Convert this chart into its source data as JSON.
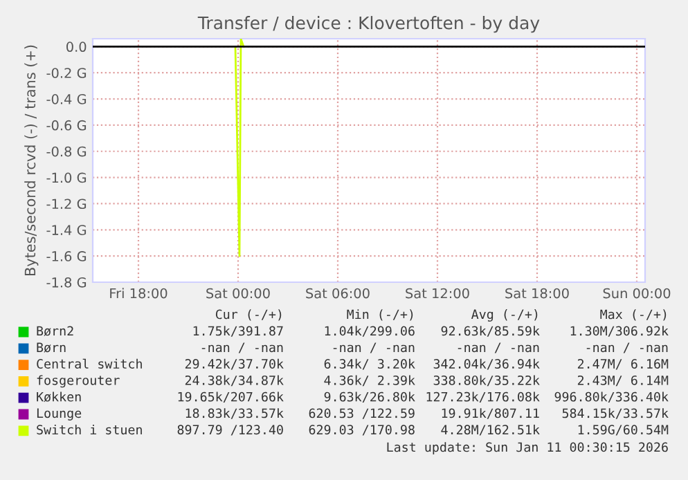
{
  "chart_data": {
    "type": "line",
    "title": "Transfer / device : Klovertoften - by day",
    "ylabel": "Bytes/second rcvd (-) / trans (+)",
    "xlim": [
      "2026-01-09T15:15",
      "2026-01-11T00:30"
    ],
    "xticks": [
      {
        "value": "2026-01-09T18:00",
        "label": "Fri 18:00"
      },
      {
        "value": "2026-01-10T00:00",
        "label": "Sat 00:00"
      },
      {
        "value": "2026-01-10T06:00",
        "label": "Sat 06:00"
      },
      {
        "value": "2026-01-10T12:00",
        "label": "Sat 12:00"
      },
      {
        "value": "2026-01-10T18:00",
        "label": "Sat 18:00"
      },
      {
        "value": "2026-01-11T00:00",
        "label": "Sun 00:00"
      }
    ],
    "ylim": [
      -1.8,
      0.06
    ],
    "yticks": [
      {
        "value": 0.0,
        "label": "0.0"
      },
      {
        "value": -0.2,
        "label": "-0.2 G"
      },
      {
        "value": -0.4,
        "label": "-0.4 G"
      },
      {
        "value": -0.6,
        "label": "-0.6 G"
      },
      {
        "value": -0.8,
        "label": "-0.8 G"
      },
      {
        "value": -1.0,
        "label": "-1.0 G"
      },
      {
        "value": -1.2,
        "label": "-1.2 G"
      },
      {
        "value": -1.4,
        "label": "-1.4 G"
      },
      {
        "value": -1.6,
        "label": "-1.6 G"
      },
      {
        "value": -1.8,
        "label": "-1.8 G"
      }
    ],
    "grid": true,
    "legend": "bottom",
    "line_style": "solid",
    "marker": "none",
    "ref_lines": [
      {
        "axis": "y",
        "value": 0,
        "color": "#000000"
      }
    ],
    "series": [
      {
        "name": "Børn2",
        "color": "#00cc00"
      },
      {
        "name": "Børn",
        "color": "#0066b3"
      },
      {
        "name": "Central switch",
        "color": "#ff8000"
      },
      {
        "name": "fosgerouter",
        "color": "#ffcc00"
      },
      {
        "name": "Køkken",
        "color": "#330099"
      },
      {
        "name": "Lounge",
        "color": "#990099"
      },
      {
        "name": "Switch i stuen",
        "color": "#ccff00",
        "x": [
          "2026-01-09T23:50",
          "2026-01-10T00:05",
          "2026-01-10T00:10",
          "2026-01-10T00:20"
        ],
        "values": [
          0,
          -1.6,
          0.06,
          0
        ]
      }
    ],
    "annotations": [
      "Cur (-/+)",
      "Min (-/+)",
      "Avg (-/+)",
      "Max (-/+)",
      "1.75k/391.87",
      "1.04k/299.06",
      "92.63k/85.59k",
      "1.30M/306.92k",
      "-nan / -nan",
      "-nan / -nan",
      "-nan / -nan",
      "-nan / -nan",
      "29.42k/37.70k",
      "6.34k/ 3.20k",
      "342.04k/36.94k",
      "2.47M/ 6.16M",
      "24.38k/34.87k",
      "4.36k/ 2.39k",
      "338.80k/35.22k",
      "2.43M/ 6.14M",
      "19.65k/207.66k",
      "9.63k/26.80k",
      "127.23k/176.08k",
      "996.80k/336.40k",
      "18.83k/33.57k",
      "620.53 /122.59",
      "19.91k/807.11",
      "584.15k/33.57k",
      "897.79 /123.40",
      "629.03 /170.98",
      "4.28M/162.51k",
      "1.59G/60.54M",
      "Last update: Sun Jan 11 00:30:15 2026"
    ]
  }
}
